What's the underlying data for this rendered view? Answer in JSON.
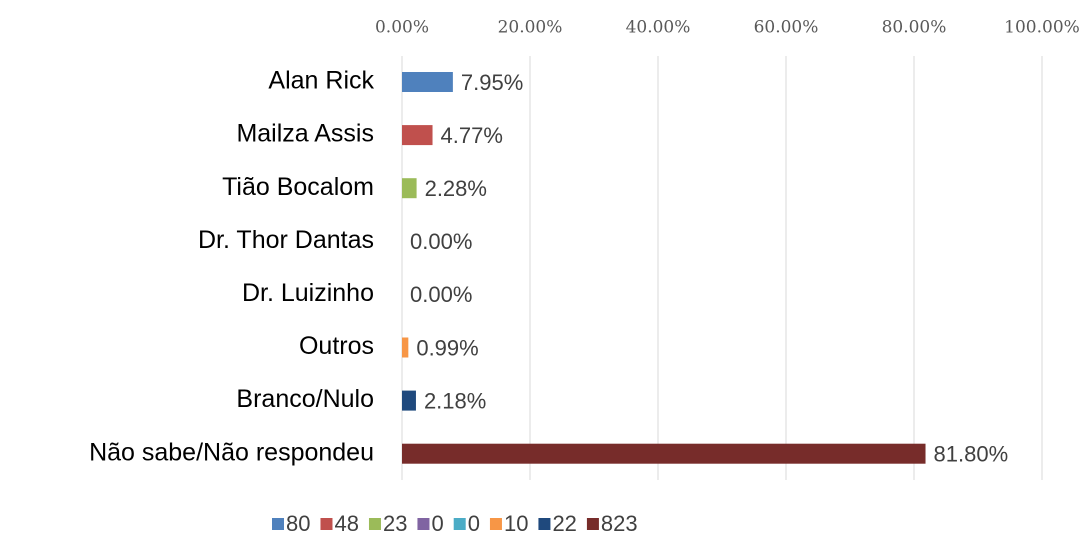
{
  "chart_data": {
    "type": "bar",
    "orientation": "horizontal",
    "categories": [
      "Alan Rick",
      "Mailza Assis",
      "Tião Bocalom",
      "Dr. Thor Dantas",
      "Dr. Luizinho",
      "Outros",
      "Branco/Nulo",
      "Não sabe/Não respondeu"
    ],
    "values": [
      7.95,
      4.77,
      2.28,
      0,
      0,
      0.99,
      2.18,
      81.8
    ],
    "value_labels": [
      "7.95%",
      "4.77%",
      "2.28%",
      "0.00%",
      "0.00%",
      "0.99%",
      "2.18%",
      "81.80%"
    ],
    "colors": [
      "#4f81bd",
      "#c0504d",
      "#9bbb59",
      "#8064a2",
      "#4bacc6",
      "#f79646",
      "#1f497d",
      "#772c2a"
    ],
    "legend": [
      "80",
      "48",
      "23",
      "0",
      "0",
      "10",
      "22",
      "823"
    ],
    "xlim": [
      0,
      100
    ],
    "xticks": [
      {
        "value": 0,
        "label": "0.00%"
      },
      {
        "value": 20,
        "label": "20.00%"
      },
      {
        "value": 40,
        "label": "40.00%"
      },
      {
        "value": 60,
        "label": "60.00%"
      },
      {
        "value": 80,
        "label": "80.00%"
      },
      {
        "value": 100,
        "label": "100.00%"
      }
    ],
    "grid": true
  }
}
